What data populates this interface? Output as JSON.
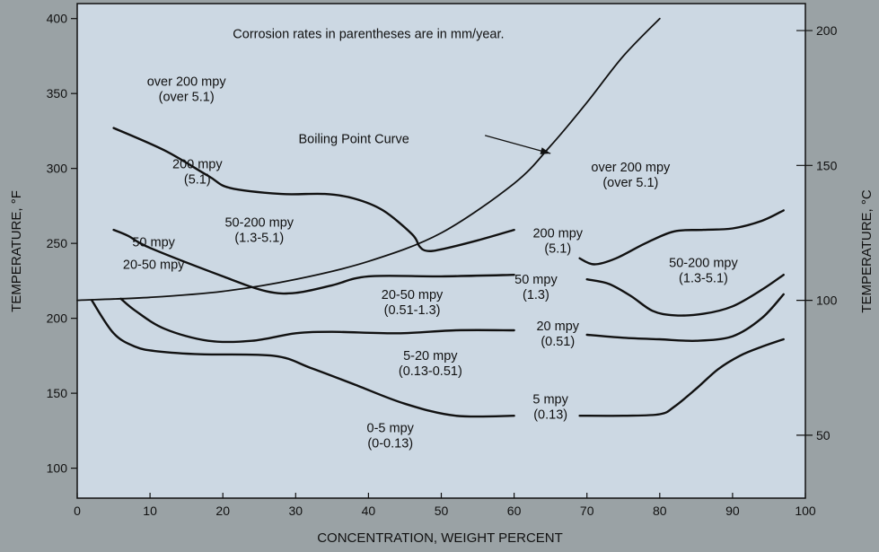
{
  "colors": {
    "page_background": "#9aa2a5",
    "plot_background": "#ccd8e3",
    "ink": "#111111"
  },
  "chart_data": {
    "type": "line",
    "title": "",
    "xlabel": "CONCENTRATION, WEIGHT PERCENT",
    "ylabel": "TEMPERATURE, °F",
    "ylabel_right": "TEMPERATURE, °C",
    "xlim": [
      0,
      100
    ],
    "ylim": [
      80,
      410
    ],
    "x_ticks": [
      0,
      10,
      20,
      30,
      40,
      50,
      60,
      70,
      80,
      90,
      100
    ],
    "y_ticks": [
      100,
      150,
      200,
      250,
      300,
      350,
      400
    ],
    "y_ticks_right": [
      50,
      100,
      150,
      200
    ],
    "grid": false,
    "annotations": [
      {
        "lines": [
          "Corrosion rates in parentheses are in mm/year."
        ],
        "x": 40,
        "y": 390
      },
      {
        "lines": [
          "over 200 mpy",
          "(over 5.1)"
        ],
        "x": 15,
        "y": 353
      },
      {
        "lines": [
          "Boiling Point Curve"
        ],
        "x": 38,
        "y": 320
      },
      {
        "lines": [
          "200 mpy",
          "(5.1)"
        ],
        "x": 16.5,
        "y": 298
      },
      {
        "lines": [
          "over 200 mpy",
          "(over 5.1)"
        ],
        "x": 76,
        "y": 296
      },
      {
        "lines": [
          "50-200 mpy",
          "(1.3-5.1)"
        ],
        "x": 25,
        "y": 259
      },
      {
        "lines": [
          "50 mpy"
        ],
        "x": 10.5,
        "y": 251
      },
      {
        "lines": [
          "20-50 mpy"
        ],
        "x": 10.5,
        "y": 236
      },
      {
        "lines": [
          "200 mpy",
          "(5.1)"
        ],
        "x": 66,
        "y": 252
      },
      {
        "lines": [
          "50-200 mpy",
          "(1.3-5.1)"
        ],
        "x": 86,
        "y": 232
      },
      {
        "lines": [
          "50 mpy",
          "(1.3)"
        ],
        "x": 63,
        "y": 221
      },
      {
        "lines": [
          "20-50 mpy",
          "(0.51-1.3)"
        ],
        "x": 46,
        "y": 211
      },
      {
        "lines": [
          "20 mpy",
          "(0.51)"
        ],
        "x": 66,
        "y": 190
      },
      {
        "lines": [
          "5-20 mpy",
          "(0.13-0.51)"
        ],
        "x": 48.5,
        "y": 170
      },
      {
        "lines": [
          "5 mpy",
          "(0.13)"
        ],
        "x": 65,
        "y": 141
      },
      {
        "lines": [
          "0-5 mpy",
          "(0-0.13)"
        ],
        "x": 43,
        "y": 122
      }
    ],
    "series": [
      {
        "x": [
          0,
          10,
          20,
          30,
          40,
          50,
          60,
          65,
          70,
          75,
          80
        ],
        "y": [
          212,
          214,
          218,
          226,
          238,
          257,
          290,
          315,
          344,
          375,
          400
        ]
      },
      {
        "x": [
          5,
          12,
          18,
          21,
          28,
          34,
          38,
          42,
          46,
          47,
          48,
          50,
          55,
          60
        ],
        "y": [
          327,
          312,
          295,
          287,
          283,
          283,
          280,
          272,
          256,
          248,
          245,
          246,
          252,
          259
        ]
      },
      {
        "x": [
          69,
          71,
          74,
          78,
          82,
          86,
          90,
          94,
          97
        ],
        "y": [
          240,
          236,
          240,
          250,
          258,
          259,
          260,
          265,
          272
        ]
      },
      {
        "x": [
          5,
          7,
          10,
          20,
          26,
          30,
          35,
          40,
          50,
          60
        ],
        "y": [
          259,
          255,
          247,
          228,
          218,
          217,
          222,
          228,
          228,
          229
        ]
      },
      {
        "x": [
          70,
          73,
          76,
          79,
          82,
          86,
          90,
          94,
          97
        ],
        "y": [
          226,
          223,
          215,
          205,
          202,
          203,
          208,
          219,
          229
        ]
      },
      {
        "x": [
          6,
          8,
          12,
          18,
          24,
          30,
          35,
          44,
          52,
          60
        ],
        "y": [
          213,
          205,
          193,
          185,
          185,
          190,
          191,
          190,
          192,
          192
        ]
      },
      {
        "x": [
          70,
          75,
          80,
          85,
          90,
          94,
          97
        ],
        "y": [
          189,
          187,
          186,
          185,
          188,
          200,
          216
        ]
      },
      {
        "x": [
          2,
          5,
          8,
          11,
          17,
          27,
          32,
          38,
          45,
          52,
          60
        ],
        "y": [
          212,
          190,
          181,
          178,
          176,
          175,
          167,
          156,
          143,
          135,
          135
        ]
      },
      {
        "x": [
          69,
          75,
          80,
          82,
          85,
          88,
          91,
          94,
          97
        ],
        "y": [
          135,
          135,
          136,
          141,
          153,
          166,
          175,
          181,
          186
        ]
      }
    ]
  }
}
